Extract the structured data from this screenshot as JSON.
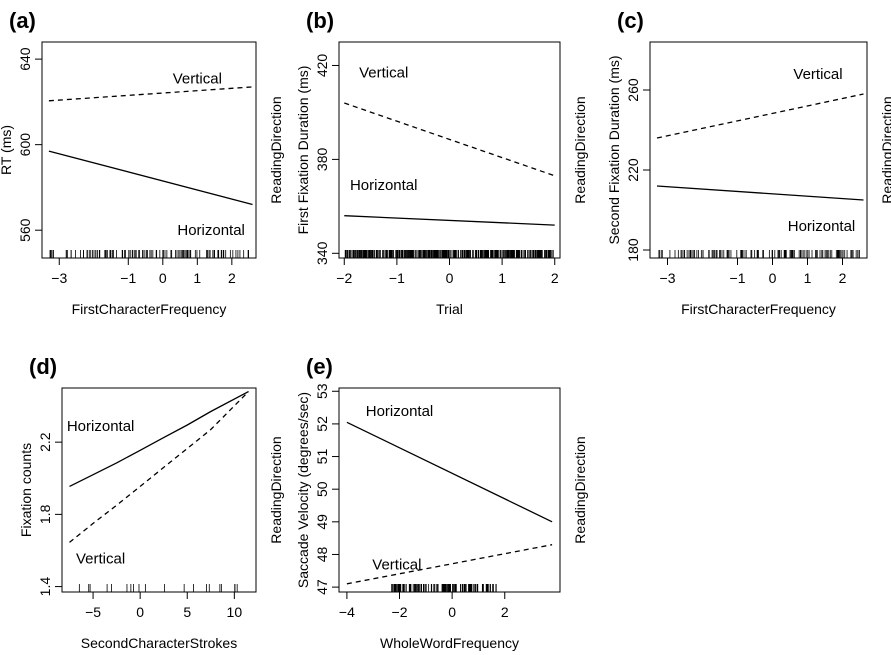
{
  "chart_data": [
    {
      "panel": "(a)",
      "type": "line",
      "xlabel": "FirstCharacterFrequency",
      "ylabel": "RT (ms)",
      "right_label": "ReadingDirection",
      "xlim": [
        -3.5,
        2.7
      ],
      "ylim": [
        547,
        648
      ],
      "xticks": [
        -3,
        -1,
        0,
        1,
        2
      ],
      "yticks": [
        560,
        600,
        640
      ],
      "series": [
        {
          "name": "Vertical",
          "style": "dashed",
          "x": [
            -3.3,
            2.6
          ],
          "y": [
            620.5,
            627
          ],
          "label_pos": [
            1.0,
            631
          ]
        },
        {
          "name": "Horizontal",
          "style": "solid",
          "x": [
            -3.3,
            2.6
          ],
          "y": [
            597,
            572
          ],
          "label_pos": [
            1.4,
            560
          ]
        }
      ],
      "rug": {
        "x_range": [
          -3.3,
          2.5
        ],
        "count": 120
      }
    },
    {
      "panel": "(b)",
      "type": "line",
      "xlabel": "Trial",
      "ylabel": "First Fixation Duration (ms)",
      "right_label": "ReadingDirection",
      "xlim": [
        -2.1,
        2.1
      ],
      "ylim": [
        338,
        430
      ],
      "xticks": [
        -2,
        -1,
        0,
        1,
        2
      ],
      "yticks": [
        340,
        380,
        420
      ],
      "series": [
        {
          "name": "Vertical",
          "style": "dashed",
          "x": [
            -2,
            2
          ],
          "y": [
            404,
            373
          ],
          "label_pos": [
            -1.25,
            417
          ]
        },
        {
          "name": "Horizontal",
          "style": "solid",
          "x": [
            -2,
            2
          ],
          "y": [
            356,
            352
          ],
          "label_pos": [
            -1.25,
            369
          ]
        }
      ],
      "rug": {
        "x_range": [
          -2,
          2
        ],
        "count": 400
      }
    },
    {
      "panel": "(c)",
      "type": "line",
      "xlabel": "FirstCharacterFrequency",
      "ylabel": "Second Fixation Duration (ms)",
      "right_label": "ReadingDirection",
      "xlim": [
        -3.5,
        2.7
      ],
      "ylim": [
        176,
        284
      ],
      "xticks": [
        -3,
        -1,
        0,
        1,
        2
      ],
      "yticks": [
        180,
        220,
        260
      ],
      "series": [
        {
          "name": "Vertical",
          "style": "dashed",
          "x": [
            -3.3,
            2.6
          ],
          "y": [
            236,
            258
          ],
          "label_pos": [
            1.3,
            268
          ]
        },
        {
          "name": "Horizontal",
          "style": "solid",
          "x": [
            -3.3,
            2.6
          ],
          "y": [
            212,
            205
          ],
          "label_pos": [
            1.4,
            192
          ]
        }
      ],
      "rug": {
        "x_range": [
          -3.3,
          2.5
        ],
        "count": 120
      }
    },
    {
      "panel": "(d)",
      "type": "line",
      "xlabel": "SecondCharacterStrokes",
      "ylabel": "Fixation counts",
      "right_label": "ReadingDirection",
      "xlim": [
        -8.3,
        12.3
      ],
      "ylim": [
        1.37,
        2.5
      ],
      "xticks": [
        -5,
        0,
        5,
        10
      ],
      "yticks": [
        1.4,
        1.8,
        2.2
      ],
      "series": [
        {
          "name": "Horizontal",
          "style": "solid",
          "x": [
            -7.5,
            -5,
            -2.5,
            0,
            2.5,
            5,
            7.5,
            11.5
          ],
          "y": [
            1.955,
            2.02,
            2.085,
            2.155,
            2.225,
            2.295,
            2.37,
            2.48
          ],
          "label_pos": [
            -4.2,
            2.29
          ]
        },
        {
          "name": "Vertical",
          "style": "dashed",
          "x": [
            -7.5,
            -5,
            -2.5,
            0,
            2.5,
            5,
            7.5,
            11.5
          ],
          "y": [
            1.645,
            1.75,
            1.85,
            1.955,
            2.06,
            2.165,
            2.27,
            2.48
          ],
          "label_pos": [
            -4.2,
            1.555
          ]
        }
      ],
      "rug": {
        "x_range": [
          -7.5,
          11.5
        ],
        "count": 20
      }
    },
    {
      "panel": "(e)",
      "type": "line",
      "xlabel": "WholeWordFrequency",
      "ylabel": "Saccade Velocity (degrees/sec)",
      "right_label": "ReadingDirection",
      "xlim": [
        -4.3,
        4.1
      ],
      "ylim": [
        46.85,
        53.1
      ],
      "xticks": [
        -4,
        -2,
        0,
        2
      ],
      "yticks": [
        47,
        48,
        49,
        50,
        51,
        52,
        53
      ],
      "series": [
        {
          "name": "Horizontal",
          "style": "solid",
          "x": [
            -4,
            3.8
          ],
          "y": [
            52.05,
            49.0
          ],
          "label_pos": [
            -2.0,
            52.4
          ]
        },
        {
          "name": "Vertical",
          "style": "dashed",
          "x": [
            -4,
            3.8
          ],
          "y": [
            47.1,
            48.3
          ],
          "label_pos": [
            -2.1,
            47.7
          ]
        }
      ],
      "rug": {
        "x_range": [
          -2.3,
          1.8
        ],
        "count": 150
      }
    }
  ]
}
